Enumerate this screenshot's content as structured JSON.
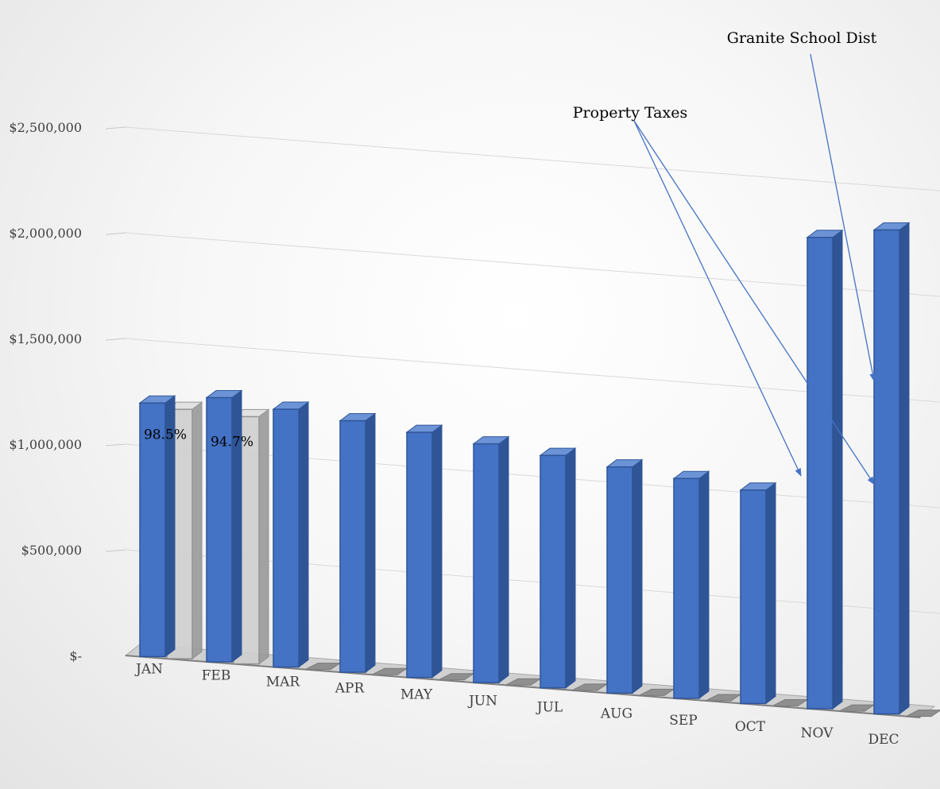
{
  "chart_data": {
    "type": "bar",
    "title": "",
    "xlabel": "",
    "ylabel": "",
    "categories": [
      "JAN",
      "FEB",
      "MAR",
      "APR",
      "MAY",
      "JUN",
      "JUL",
      "AUG",
      "SEP",
      "OCT",
      "NOV",
      "DEC"
    ],
    "series": [
      {
        "values": [
          1200000,
          1250000,
          1220000,
          1190000,
          1160000,
          1130000,
          1100000,
          1070000,
          1040000,
          1010000,
          2230000,
          2290000
        ],
        "color": "#4472c4"
      },
      {
        "values": [
          1180000,
          1170000,
          null,
          null,
          null,
          null,
          null,
          null,
          null,
          null,
          null,
          null
        ],
        "color": "#c8c8c8",
        "data_labels": [
          "98.5%",
          "94.7%",
          null,
          null,
          null,
          null,
          null,
          null,
          null,
          null,
          null,
          null
        ]
      }
    ],
    "ylim": [
      0,
      2500000
    ],
    "yticks": [
      {
        "value": 0,
        "label": "$-"
      },
      {
        "value": 500000,
        "label": "$500,000"
      },
      {
        "value": 1000000,
        "label": "$1,000,000"
      },
      {
        "value": 1500000,
        "label": "$1,500,000"
      },
      {
        "value": 2000000,
        "label": "$2,000,000"
      },
      {
        "value": 2500000,
        "label": "$2,500,000"
      }
    ],
    "grid": true,
    "legend": "none",
    "annotations": [
      {
        "text": "Property Taxes",
        "targets": [
          "NOV",
          "DEC"
        ]
      },
      {
        "text": "Granite School Dist",
        "targets": [
          "DEC"
        ]
      }
    ]
  }
}
